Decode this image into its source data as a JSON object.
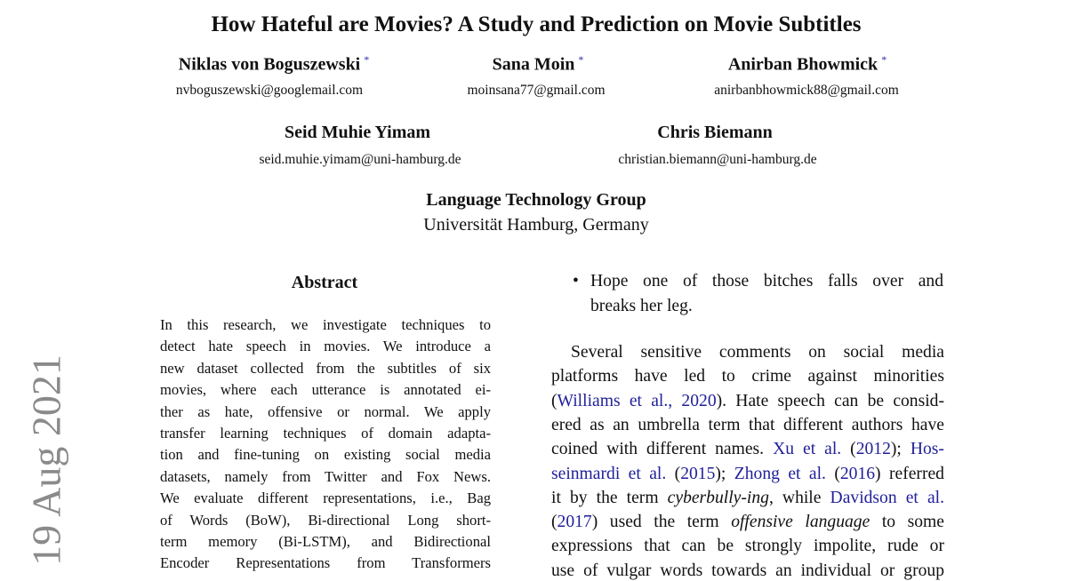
{
  "arxiv_stamp": "19 Aug 2021",
  "title": "How Hateful are Movies? A Study and Prediction on Movie Subtitles",
  "authors": [
    {
      "name": "Niklas von Boguszewski",
      "mark": "*",
      "email": "nvboguszewski@googlemail.com"
    },
    {
      "name": "Sana Moin",
      "mark": "*",
      "email": "moinsana77@gmail.com"
    },
    {
      "name": "Anirban Bhowmick",
      "mark": "*",
      "email": "anirbanbhowmick88@gmail.com"
    },
    {
      "name": "Seid Muhie Yimam",
      "mark": "",
      "email": "seid.muhie.yimam@uni-hamburg.de"
    },
    {
      "name": "Chris Biemann",
      "mark": "",
      "email": "christian.biemann@uni-hamburg.de"
    }
  ],
  "affiliation": {
    "group": "Language Technology Group",
    "institution": "Universität Hamburg, Germany"
  },
  "colors": {
    "link": "#1f1f9a",
    "stamp": "#8a8a8a"
  },
  "abstract": {
    "heading": "Abstract",
    "lines": [
      "In this research, we investigate techniques to",
      "detect hate speech in movies.  We introduce a",
      "new dataset collected from the subtitles of six",
      "movies, where each utterance is annotated ei-",
      "ther as hate, offensive or normal.  We apply",
      "transfer learning techniques of domain adapta-",
      "tion and fine-tuning on existing social media",
      "datasets, namely from Twitter and Fox News.",
      "We evaluate different representations, i.e., Bag",
      "of Words (BoW), Bi-directional Long short-",
      "term memory (Bi-LSTM), and Bidirectional",
      "Encoder Representations from Transformers"
    ]
  },
  "right_column": {
    "bullet": {
      "symbol": "•",
      "lines": [
        "Hope one of those bitches falls over and",
        "breaks her leg."
      ]
    },
    "paragraph": [
      [
        {
          "t": "Several sensitive comments on social media"
        }
      ],
      [
        {
          "t": "platforms have led to crime against minorities"
        }
      ],
      [
        {
          "t": "("
        },
        {
          "t": "Williams et al., 2020",
          "s": "link"
        },
        {
          "t": "). Hate speech can be consid-"
        }
      ],
      [
        {
          "t": "ered as an umbrella term that different authors have"
        }
      ],
      [
        {
          "t": "coined with different names. "
        },
        {
          "t": "Xu et al.",
          "s": "link"
        },
        {
          "t": " ("
        },
        {
          "t": "2012",
          "s": "link"
        },
        {
          "t": "); "
        },
        {
          "t": "Hos-",
          "s": "link"
        }
      ],
      [
        {
          "t": "seinmardi et al.",
          "s": "link"
        },
        {
          "t": " ("
        },
        {
          "t": "2015",
          "s": "link"
        },
        {
          "t": "); "
        },
        {
          "t": "Zhong et al.",
          "s": "link"
        },
        {
          "t": " ("
        },
        {
          "t": "2016",
          "s": "link"
        },
        {
          "t": ") referred"
        }
      ],
      [
        {
          "t": "it by the term "
        },
        {
          "t": "cyberbully-ing",
          "s": "em"
        },
        {
          "t": ", while "
        },
        {
          "t": "Davidson et al.",
          "s": "link"
        }
      ],
      [
        {
          "t": "("
        },
        {
          "t": "2017",
          "s": "link"
        },
        {
          "t": ") used the term "
        },
        {
          "t": "offensive language",
          "s": "em"
        },
        {
          "t": " to some"
        }
      ],
      [
        {
          "t": "expressions that can be strongly impolite, rude or"
        }
      ],
      [
        {
          "t": "use of vulgar words towards an individual or group"
        }
      ]
    ]
  }
}
